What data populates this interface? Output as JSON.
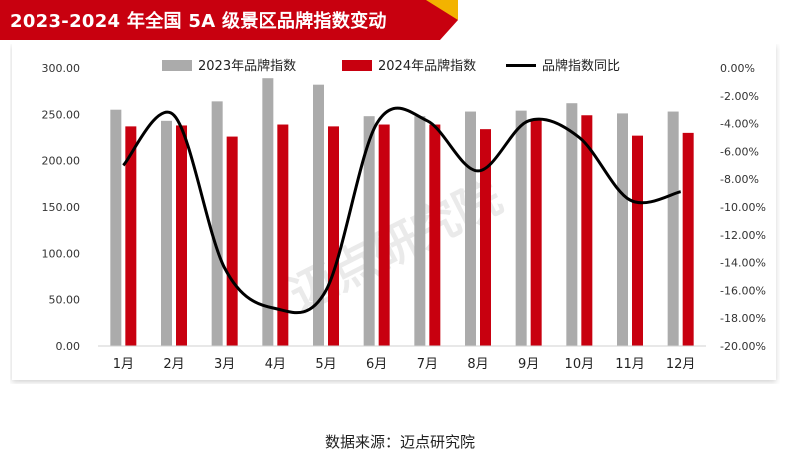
{
  "title": "2023-2024 年全国 5A 级景区品牌指数变动",
  "source": "数据来源：迈点研究院",
  "watermark": "迈点研究院",
  "colors": {
    "series_2023": "#ababab",
    "series_2024": "#c8000f",
    "ratio_line": "#000000",
    "banner": "#c8000f",
    "banner_accent": "#f3b300"
  },
  "chart_data": {
    "type": "bar",
    "categories": [
      "1月",
      "2月",
      "3月",
      "4月",
      "5月",
      "6月",
      "7月",
      "8月",
      "9月",
      "10月",
      "11月",
      "12月"
    ],
    "series": [
      {
        "name": "2023年品牌指数",
        "type": "bar",
        "axis": "left",
        "values": [
          255,
          243,
          264,
          289,
          282,
          248,
          248,
          253,
          254,
          262,
          251,
          253
        ]
      },
      {
        "name": "2024年品牌指数",
        "type": "bar",
        "axis": "left",
        "values": [
          237,
          238,
          226,
          239,
          237,
          239,
          239,
          234,
          244,
          249,
          227,
          230
        ]
      },
      {
        "name": "品牌指数同比",
        "type": "line",
        "axis": "right",
        "values": [
          -7.0,
          -3.4,
          -14.4,
          -17.3,
          -16.0,
          -4.0,
          -3.8,
          -7.4,
          -3.8,
          -5.0,
          -9.5,
          -8.9
        ]
      }
    ],
    "yleft": {
      "min": 0,
      "max": 300,
      "ticks": [
        "0.00",
        "50.00",
        "100.00",
        "150.00",
        "200.00",
        "250.00",
        "300.00"
      ]
    },
    "yright": {
      "min": -20,
      "max": 0,
      "ticks": [
        "0.00%",
        "-2.00%",
        "-4.00%",
        "-6.00%",
        "-8.00%",
        "-10.00%",
        "-12.00%",
        "-14.00%",
        "-16.00%",
        "-18.00%",
        "-20.00%"
      ]
    },
    "legend_position": "top",
    "grid": false
  }
}
